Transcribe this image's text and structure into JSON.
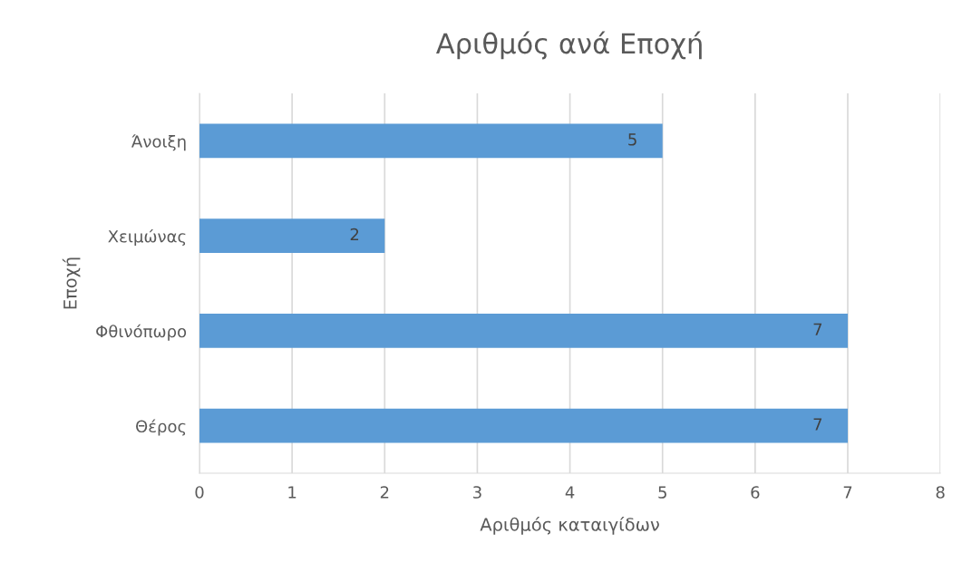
{
  "chart_data": {
    "type": "bar",
    "orientation": "horizontal",
    "title": "Αριθμός ανά Εποχή",
    "xlabel": "Αριθμός καταιγίδων",
    "ylabel": "Εποχή",
    "categories": [
      "Άνοιξη",
      "Χειμώνας",
      "Φθινόπωρο",
      "Θέρος"
    ],
    "values": [
      5,
      2,
      7,
      7
    ],
    "color": "#5b9bd5",
    "xlim": [
      0,
      8
    ],
    "xticks": [
      0,
      1,
      2,
      3,
      4,
      5,
      6,
      7,
      8
    ],
    "grid": "x",
    "data_labels": true
  }
}
